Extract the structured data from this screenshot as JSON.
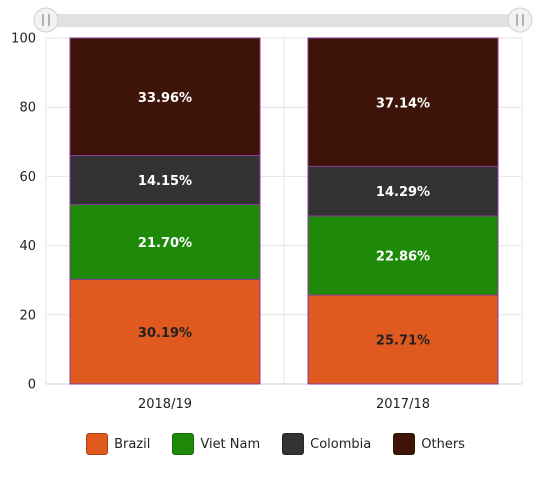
{
  "chart_data": {
    "type": "bar",
    "stacked": true,
    "percent": true,
    "categories": [
      "2018/19",
      "2017/18"
    ],
    "series": [
      {
        "name": "Brazil",
        "color": "#e05a20",
        "label_color": "#222222",
        "values": [
          30.19,
          25.71
        ],
        "labels": [
          "30.19%",
          "25.71%"
        ]
      },
      {
        "name": "Viet Nam",
        "color": "#1f8a0a",
        "label_color": "#ffffff",
        "values": [
          21.7,
          22.86
        ],
        "labels": [
          "21.70%",
          "22.86%"
        ]
      },
      {
        "name": "Colombia",
        "color": "#333333",
        "label_color": "#ffffff",
        "values": [
          14.15,
          14.29
        ],
        "labels": [
          "14.15%",
          "14.29%"
        ]
      },
      {
        "name": "Others",
        "color": "#3f1408",
        "label_color": "#ffffff",
        "values": [
          33.96,
          37.14
        ],
        "labels": [
          "33.96%",
          "37.14%"
        ]
      }
    ],
    "ylim": [
      0,
      100
    ],
    "yticks": [
      0,
      20,
      40,
      60,
      80,
      100
    ],
    "ytick_labels": [
      "0",
      "20",
      "40",
      "60",
      "80",
      "100"
    ],
    "grid": true,
    "legend_position": "bottom",
    "range_slider": true
  }
}
